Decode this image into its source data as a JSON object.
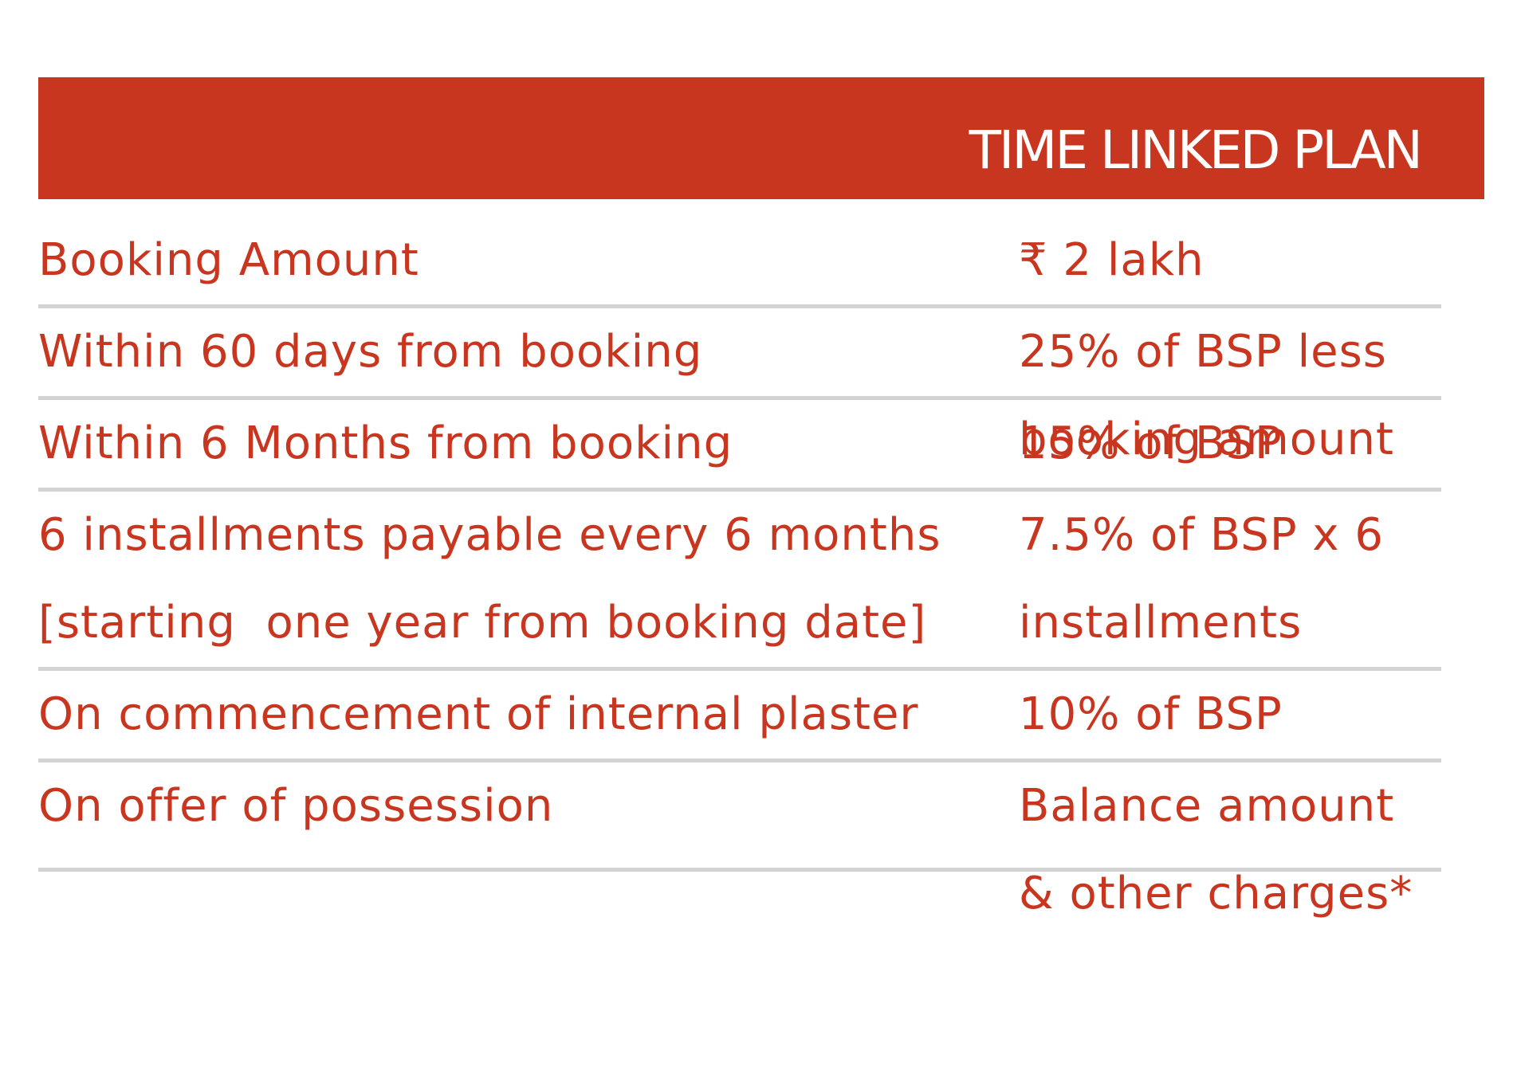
{
  "header": {
    "title": "TIME LINKED PLAN",
    "background_color": "#c9361f",
    "text_color": "#ffffff"
  },
  "table": {
    "text_color": "#c9361f",
    "divider_color": "#d3d3d3",
    "rows": [
      {
        "stage": [
          "Booking Amount"
        ],
        "amount": [
          "₹ 2 lakh"
        ]
      },
      {
        "stage": [
          "Within 60 days from booking"
        ],
        "amount": [
          "25% of BSP less",
          "booking amount"
        ]
      },
      {
        "stage": [
          "Within 6 Months from booking"
        ],
        "amount": [
          "15% of BSP"
        ]
      },
      {
        "stage": [
          "6 installments payable every 6 months",
          "[starting  one year from booking date]"
        ],
        "amount": [
          "7.5% of BSP x 6",
          "installments"
        ]
      },
      {
        "stage": [
          "On commencement of internal plaster"
        ],
        "amount": [
          "10% of BSP"
        ]
      },
      {
        "stage": [
          "On offer of possession"
        ],
        "amount": [
          "Balance amount",
          "& other charges*"
        ]
      }
    ]
  }
}
